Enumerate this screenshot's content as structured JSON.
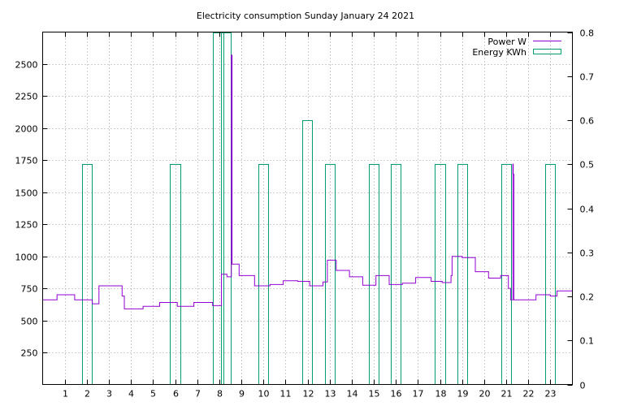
{
  "chart_data": {
    "type": "line",
    "title": "Electricity consumption Sunday January 24 2021",
    "xlim": [
      0,
      24
    ],
    "x_ticks": [
      "1",
      "2",
      "3",
      "4",
      "5",
      "6",
      "7",
      "8",
      "9",
      "10",
      "11",
      "12",
      "13",
      "14",
      "15",
      "16",
      "17",
      "18",
      "19",
      "20",
      "21",
      "22",
      "23"
    ],
    "y_left": {
      "lim": [
        0,
        2750
      ],
      "ticks": [
        "250",
        "500",
        "750",
        "1000",
        "1250",
        "1500",
        "1750",
        "2000",
        "2250",
        "2500"
      ]
    },
    "y_right": {
      "lim": [
        0,
        0.8
      ],
      "ticks": [
        "0",
        "0.1",
        "0.2",
        "0.3",
        "0.4",
        "0.5",
        "0.6",
        "0.7",
        "0.8"
      ]
    },
    "grid": true,
    "legend_position": "top-right",
    "series": [
      {
        "name": "Power W",
        "axis": "left",
        "style": "step-line",
        "color": "#9400d3",
        "points": [
          [
            0,
            660
          ],
          [
            0.65,
            660
          ],
          [
            0.65,
            700
          ],
          [
            1.45,
            700
          ],
          [
            1.45,
            660
          ],
          [
            2.25,
            660
          ],
          [
            2.25,
            630
          ],
          [
            2.55,
            630
          ],
          [
            2.55,
            770
          ],
          [
            3.6,
            770
          ],
          [
            3.6,
            690
          ],
          [
            3.7,
            690
          ],
          [
            3.7,
            590
          ],
          [
            4.55,
            590
          ],
          [
            4.55,
            610
          ],
          [
            5.3,
            610
          ],
          [
            5.3,
            640
          ],
          [
            6.1,
            640
          ],
          [
            6.1,
            610
          ],
          [
            6.85,
            610
          ],
          [
            6.85,
            640
          ],
          [
            7.7,
            640
          ],
          [
            7.7,
            615
          ],
          [
            8.1,
            615
          ],
          [
            8.1,
            860
          ],
          [
            8.35,
            860
          ],
          [
            8.35,
            840
          ],
          [
            8.55,
            840
          ],
          [
            8.55,
            2570
          ],
          [
            8.58,
            2570
          ],
          [
            8.58,
            940
          ],
          [
            8.9,
            940
          ],
          [
            8.9,
            850
          ],
          [
            9.6,
            850
          ],
          [
            9.6,
            770
          ],
          [
            10.3,
            770
          ],
          [
            10.3,
            780
          ],
          [
            10.9,
            780
          ],
          [
            10.9,
            810
          ],
          [
            11.55,
            810
          ],
          [
            11.55,
            805
          ],
          [
            12.1,
            805
          ],
          [
            12.1,
            770
          ],
          [
            12.7,
            770
          ],
          [
            12.7,
            800
          ],
          [
            12.9,
            800
          ],
          [
            12.9,
            970
          ],
          [
            13.3,
            970
          ],
          [
            13.3,
            890
          ],
          [
            13.9,
            890
          ],
          [
            13.9,
            840
          ],
          [
            14.5,
            840
          ],
          [
            14.5,
            775
          ],
          [
            15.1,
            775
          ],
          [
            15.1,
            850
          ],
          [
            15.7,
            850
          ],
          [
            15.7,
            780
          ],
          [
            16.3,
            780
          ],
          [
            16.3,
            790
          ],
          [
            16.9,
            790
          ],
          [
            16.9,
            835
          ],
          [
            17.6,
            835
          ],
          [
            17.6,
            805
          ],
          [
            18.1,
            805
          ],
          [
            18.1,
            795
          ],
          [
            18.5,
            795
          ],
          [
            18.5,
            850
          ],
          [
            18.55,
            850
          ],
          [
            18.55,
            1000
          ],
          [
            19.0,
            1000
          ],
          [
            19.0,
            990
          ],
          [
            19.6,
            990
          ],
          [
            19.6,
            880
          ],
          [
            20.2,
            880
          ],
          [
            20.2,
            830
          ],
          [
            20.75,
            830
          ],
          [
            20.75,
            850
          ],
          [
            21.1,
            850
          ],
          [
            21.1,
            750
          ],
          [
            21.2,
            750
          ],
          [
            21.2,
            660
          ],
          [
            21.3,
            660
          ],
          [
            21.3,
            1720
          ],
          [
            21.32,
            1720
          ],
          [
            21.32,
            1640
          ],
          [
            21.35,
            1640
          ],
          [
            21.35,
            660
          ],
          [
            22.35,
            660
          ],
          [
            22.35,
            700
          ],
          [
            23.0,
            700
          ],
          [
            23.0,
            690
          ],
          [
            23.3,
            690
          ],
          [
            23.3,
            730
          ],
          [
            24,
            730
          ]
        ]
      },
      {
        "name": "Energy KWh",
        "axis": "right",
        "style": "boxes",
        "color": "#009e73",
        "bar_width": 0.45,
        "x": [
          2,
          6,
          8,
          8.3,
          10,
          12,
          13,
          15,
          16,
          18,
          19,
          21,
          23
        ],
        "values": [
          0.5,
          0.5,
          0.8,
          0.8,
          0.5,
          0.6,
          0.5,
          0.5,
          0.5,
          0.5,
          0.5,
          0.5,
          0.5
        ],
        "x_centers": [
          2.0,
          6.0,
          7.95,
          8.3,
          10.0,
          11.97,
          13.0,
          15.0,
          16.0,
          18.0,
          19.0,
          21.0,
          23.0
        ]
      }
    ]
  }
}
